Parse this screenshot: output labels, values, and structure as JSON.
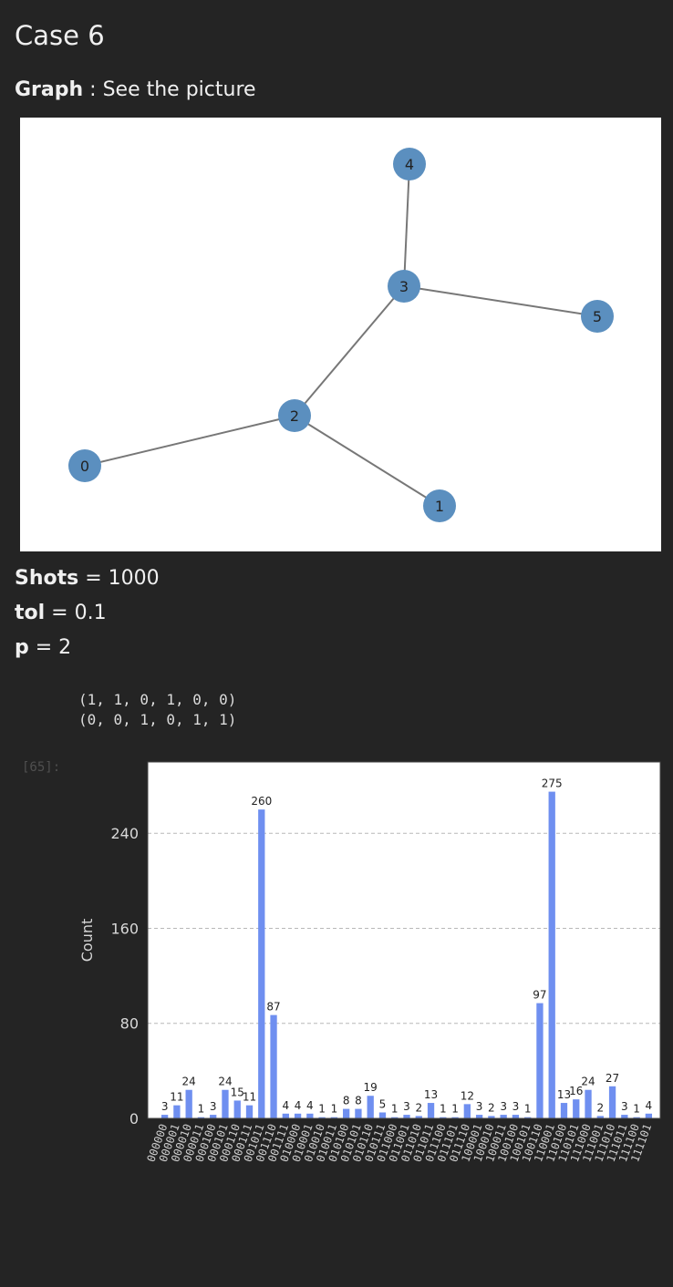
{
  "heading": "Case 6",
  "graph_line": {
    "label": "Graph",
    "rest": " : See the picture"
  },
  "graph": {
    "node_color": "#5b8fbf",
    "nodes": [
      {
        "id": "0",
        "label": "0"
      },
      {
        "id": "1",
        "label": "1"
      },
      {
        "id": "2",
        "label": "2"
      },
      {
        "id": "3",
        "label": "3"
      },
      {
        "id": "4",
        "label": "4"
      },
      {
        "id": "5",
        "label": "5"
      }
    ],
    "edges": [
      [
        "0",
        "2"
      ],
      [
        "2",
        "1"
      ],
      [
        "2",
        "3"
      ],
      [
        "3",
        "4"
      ],
      [
        "3",
        "5"
      ]
    ]
  },
  "params": {
    "shots": {
      "label": "Shots",
      "value": " = 1000"
    },
    "tol": {
      "label": "tol",
      "value": " = 0.1"
    },
    "p": {
      "label": "p",
      "value": " = 2"
    }
  },
  "output_lines": [
    "(1, 1, 0, 1, 0, 0)",
    "(0, 0, 1, 0, 1, 1)"
  ],
  "prompt": "[65]:",
  "chart_data": {
    "type": "bar",
    "ylabel": "Count",
    "ylim": [
      0,
      300
    ],
    "yticks": [
      0,
      80,
      160,
      240
    ],
    "grid": true,
    "bar_color": "#6f8ff0",
    "values": [
      3,
      11,
      24,
      1,
      3,
      24,
      15,
      11,
      260,
      87,
      4,
      4,
      4,
      1,
      1,
      8,
      8,
      19,
      5,
      1,
      3,
      2,
      13,
      1,
      1,
      12,
      3,
      2,
      3,
      3,
      1,
      97,
      275,
      13,
      16,
      24,
      2,
      27,
      3,
      1,
      4
    ],
    "categories": [
      "000000",
      "000001",
      "000010",
      "000011",
      "000100",
      "000101",
      "000110",
      "000111",
      "001011",
      "001110",
      "001111",
      "010000",
      "010001",
      "010010",
      "010011",
      "010100",
      "010101",
      "010110",
      "010111",
      "011000",
      "011001",
      "011010",
      "011011",
      "011100",
      "011101",
      "011110",
      "100001",
      "100010",
      "100011",
      "100100",
      "100101",
      "100110",
      "110001",
      "110100",
      "110101",
      "111000",
      "111001",
      "111010",
      "111011",
      "111100",
      "111101"
    ]
  }
}
